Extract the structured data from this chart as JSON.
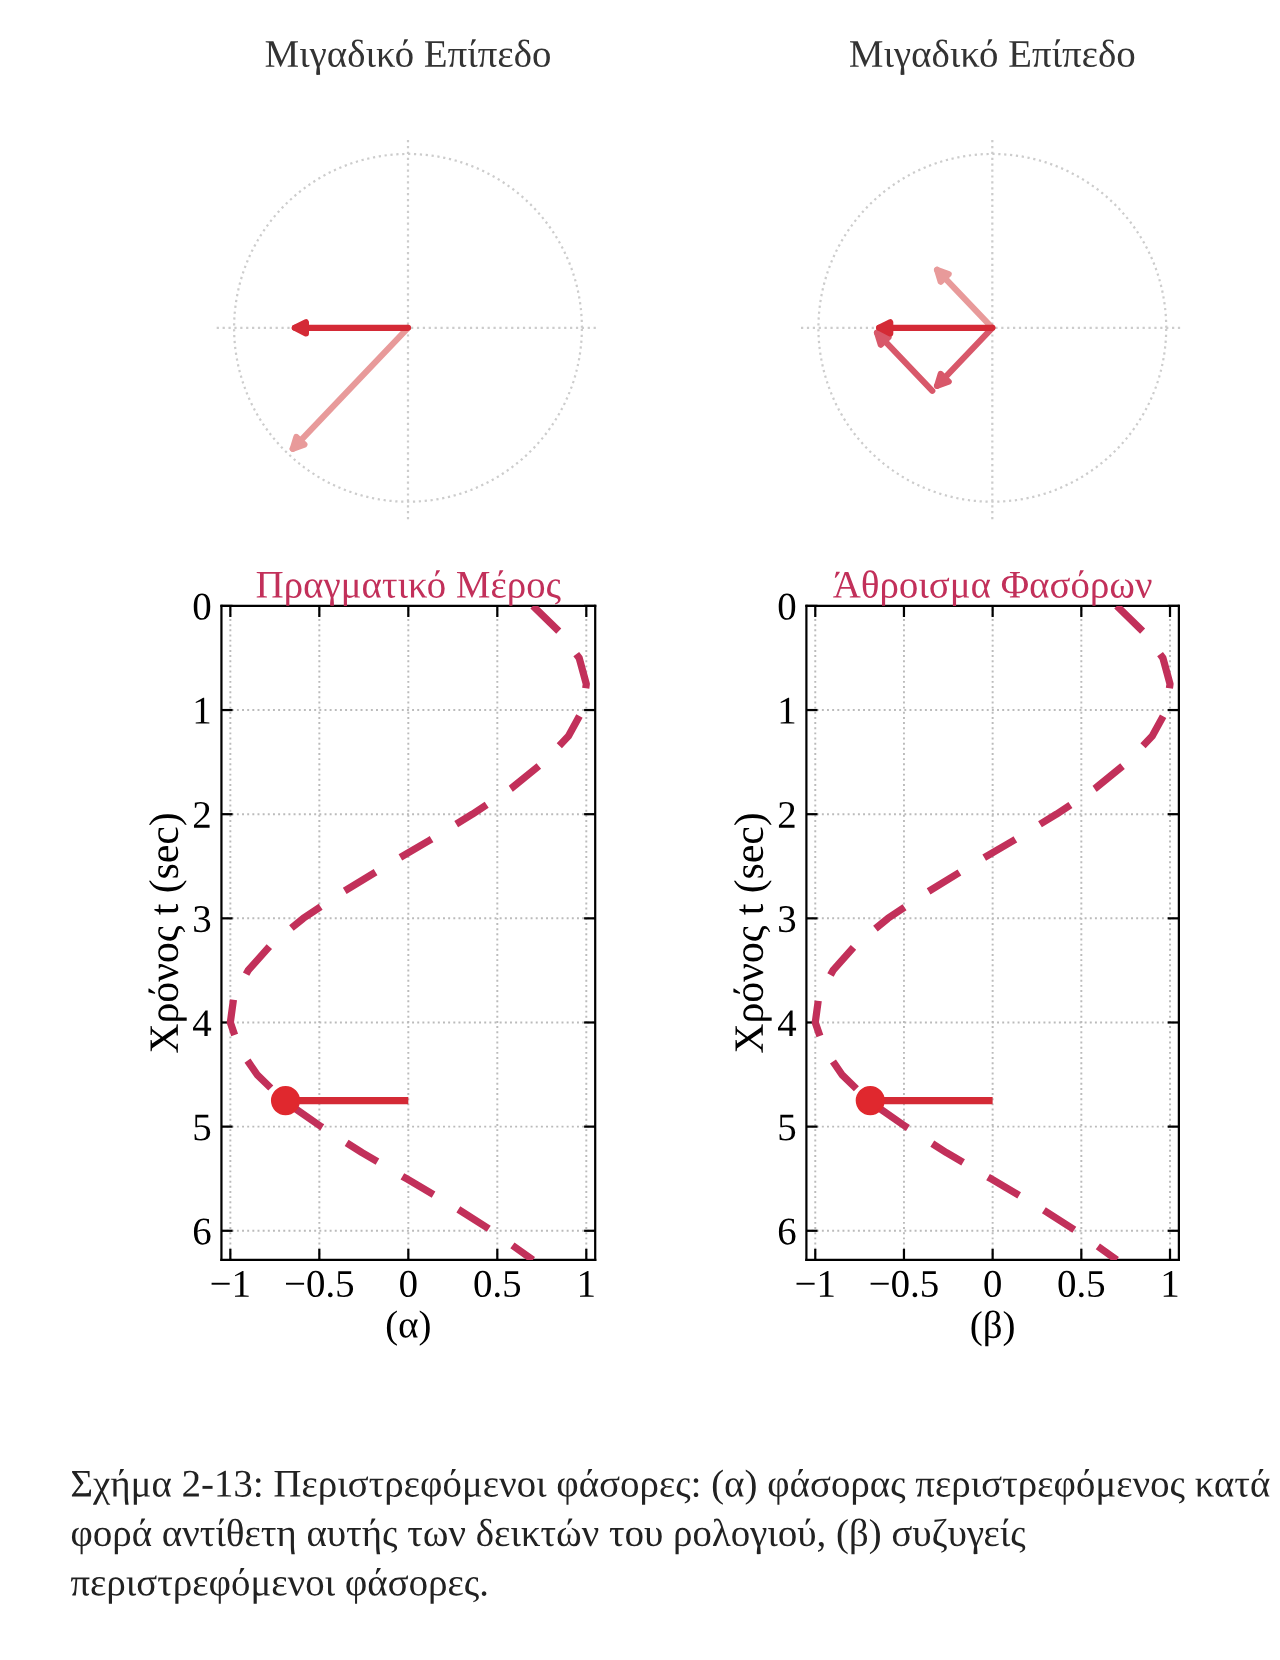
{
  "chart_data": [
    {
      "type": "other",
      "title": "Μιγαδικό Επίπεδο"
    },
    {
      "type": "other",
      "title": "Μιγαδικό Επίπεδο"
    },
    {
      "type": "line",
      "title": "Πραγματικό Μέρος",
      "xlabel": "(α)",
      "ylabel": "Χρόνος t (sec)",
      "grid": true,
      "xlim": [
        -1.05,
        1.05
      ],
      "xticks": [
        -1,
        -0.5,
        0,
        0.5,
        1
      ],
      "ylim": [
        6.28,
        0
      ],
      "yticks": [
        0,
        1,
        2,
        3,
        4,
        5,
        6
      ],
      "series": [
        {
          "color": "#c2305a",
          "line_style": "dashed",
          "x": [
            0.7,
            0.85,
            0.96,
            1.0,
            0.98,
            0.9,
            0.76,
            0.58,
            0.36,
            0.12,
            -0.13,
            -0.37,
            -0.59,
            -0.77,
            -0.9,
            -0.98,
            -1.0,
            -0.95,
            -0.85,
            -0.7,
            -0.49,
            -0.26,
            -0.01,
            0.24,
            0.47,
            0.7
          ],
          "values": [
            0,
            0.25,
            0.5,
            0.75,
            1.0,
            1.25,
            1.5,
            1.75,
            2.0,
            2.25,
            2.5,
            2.75,
            3.0,
            3.25,
            3.5,
            3.75,
            4.0,
            4.25,
            4.5,
            4.75,
            5.0,
            5.25,
            5.5,
            5.75,
            6.0,
            6.28
          ]
        },
        {
          "color": "#d42a36",
          "line_style": "solid",
          "x": [
            0,
            -0.69
          ],
          "values": [
            4.75,
            4.75
          ]
        },
        {
          "type": "scatter",
          "marker": "circle",
          "color": "#e0282e",
          "x": [
            -0.69
          ],
          "values": [
            4.75
          ]
        }
      ]
    },
    {
      "type": "line",
      "title": "Άθροισμα Φασόρων",
      "xlabel": "(β)",
      "ylabel": "Χρόνος t (sec)",
      "grid": true,
      "xlim": [
        -1.05,
        1.05
      ],
      "xticks": [
        -1,
        -0.5,
        0,
        0.5,
        1
      ],
      "ylim": [
        6.28,
        0
      ],
      "yticks": [
        0,
        1,
        2,
        3,
        4,
        5,
        6
      ],
      "annotations": [
        "Σχήμα 2-13: Περιστρεφόμενοι φάσορες: (α) φάσορας περιστρεφόμενος κατά φορά αντίθετη αυτής των δεικτών του ρολογιού, (β) συζυγείς περιστρεφόμενοι φάσορες."
      ],
      "series": [
        {
          "color": "#c2305a",
          "line_style": "dashed",
          "x": [
            0.7,
            0.85,
            0.96,
            1.0,
            0.98,
            0.9,
            0.76,
            0.58,
            0.36,
            0.12,
            -0.13,
            -0.37,
            -0.59,
            -0.77,
            -0.9,
            -0.98,
            -1.0,
            -0.95,
            -0.85,
            -0.7,
            -0.49,
            -0.26,
            -0.01,
            0.24,
            0.47,
            0.7
          ],
          "values": [
            0,
            0.25,
            0.5,
            0.75,
            1.0,
            1.25,
            1.5,
            1.75,
            2.0,
            2.25,
            2.5,
            2.75,
            3.0,
            3.25,
            3.5,
            3.75,
            4.0,
            4.25,
            4.5,
            4.75,
            5.0,
            5.25,
            5.5,
            5.75,
            6.0,
            6.28
          ]
        },
        {
          "color": "#d42a36",
          "line_style": "solid",
          "x": [
            0,
            -0.69
          ],
          "values": [
            4.75,
            4.75
          ]
        },
        {
          "type": "scatter",
          "marker": "circle",
          "color": "#e0282e",
          "x": [
            -0.69
          ],
          "values": [
            4.75
          ]
        }
      ]
    }
  ]
}
